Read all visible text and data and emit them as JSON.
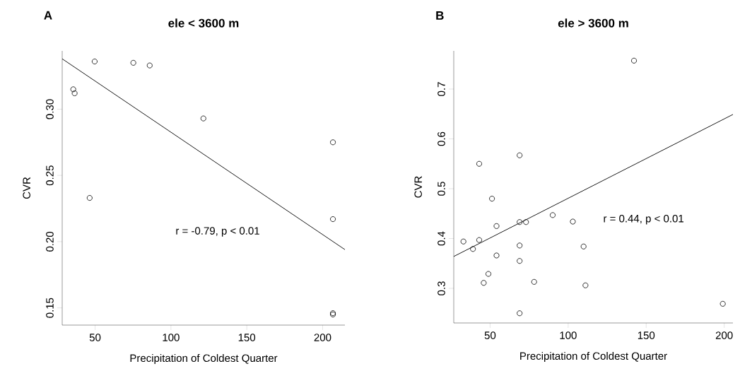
{
  "chart_data": [
    {
      "type": "scatter",
      "title": "ele < 3600 m",
      "xlabel": "Precipitation of Coldest Quarter",
      "ylabel": "CVR",
      "annotations": [
        "A",
        "r = -0.79, p < 0.01"
      ],
      "grid": false,
      "xlim": [
        28.3,
        214.7
      ],
      "ylim": [
        0.137,
        0.344
      ],
      "xticks": [
        50,
        100,
        150,
        200
      ],
      "yticks": [
        {
          "value": 0.15,
          "label": "0.15"
        },
        {
          "value": 0.2,
          "label": "0.20"
        },
        {
          "value": 0.25,
          "label": "0.25"
        },
        {
          "value": 0.3,
          "label": "0.30"
        }
      ],
      "series": [
        {
          "marker": "circle",
          "color": "#000000",
          "x": [
            35.6,
            36.5,
            49.7,
            75.2,
            86.0,
            46.4,
            121.4,
            206.8,
            206.8,
            206.8,
            206.8
          ],
          "values": [
            0.315,
            0.312,
            0.336,
            0.335,
            0.333,
            0.233,
            0.293,
            0.275,
            0.217,
            0.146,
            0.145
          ]
        },
        {
          "type": "line",
          "color": "#000000",
          "x": [
            28.3,
            214.7
          ],
          "values": [
            0.338,
            0.194
          ]
        }
      ]
    },
    {
      "type": "scatter",
      "title": "ele > 3600 m",
      "xlabel": "Precipitation of Coldest Quarter",
      "ylabel": "CVR",
      "annotations": [
        "B",
        "r = 0.44, p < 0.01"
      ],
      "grid": false,
      "xlim": [
        26.7,
        205.6
      ],
      "ylim": [
        0.2305,
        0.7766
      ],
      "xticks": [
        50,
        100,
        150,
        200
      ],
      "yticks": [
        0.3,
        0.4,
        0.5,
        0.6,
        0.7
      ],
      "series": [
        {
          "marker": "circle",
          "color": "#000000",
          "x": [
            32.9,
            39.0,
            43.0,
            43.0,
            45.9,
            48.9,
            51.2,
            54.1,
            54.1,
            68.9,
            68.9,
            68.9,
            68.9,
            68.9,
            73.0,
            78.2,
            90.1,
            103.0,
            109.9,
            111.1,
            142.2,
            199.1
          ],
          "values": [
            0.394,
            0.379,
            0.397,
            0.55,
            0.311,
            0.329,
            0.48,
            0.425,
            0.366,
            0.567,
            0.433,
            0.386,
            0.355,
            0.25,
            0.433,
            0.313,
            0.447,
            0.434,
            0.384,
            0.306,
            0.757,
            0.269
          ]
        },
        {
          "type": "line",
          "color": "#000000",
          "x": [
            26.7,
            205.6
          ],
          "values": [
            0.364,
            0.649
          ]
        }
      ]
    }
  ]
}
